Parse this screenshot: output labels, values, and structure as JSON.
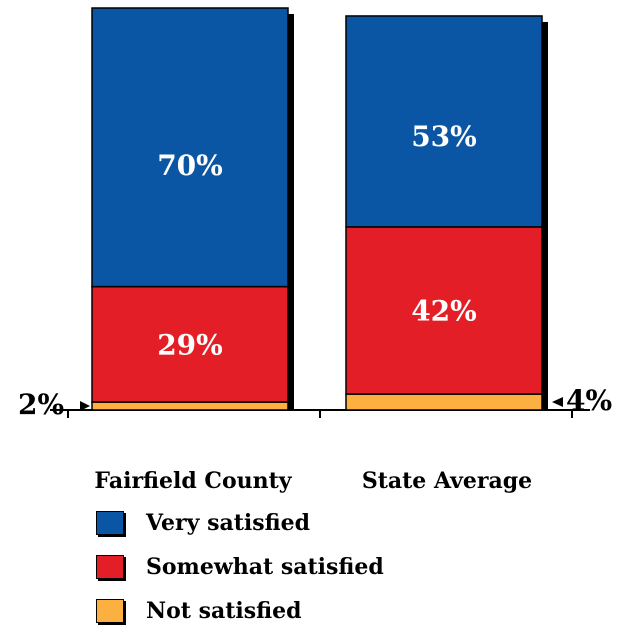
{
  "chart_data": {
    "type": "bar",
    "stacked": true,
    "categories": [
      "Fairfield County",
      "State Average"
    ],
    "series": [
      {
        "name": "Not satisfied",
        "values": [
          2,
          4
        ],
        "value_labels": [
          "2%",
          "4%"
        ],
        "color": "#FBB040"
      },
      {
        "name": "Somewhat satisfied",
        "values": [
          29,
          42
        ],
        "value_labels": [
          "29%",
          "42%"
        ],
        "color": "#E31E26"
      },
      {
        "name": "Very satisfied",
        "values": [
          70,
          53
        ],
        "value_labels": [
          "70%",
          "53%"
        ],
        "color": "#0B56A4"
      }
    ],
    "ylim": [
      0,
      101
    ],
    "title": "",
    "xlabel": "",
    "ylabel": "",
    "grid": false,
    "legend": "bottom"
  }
}
